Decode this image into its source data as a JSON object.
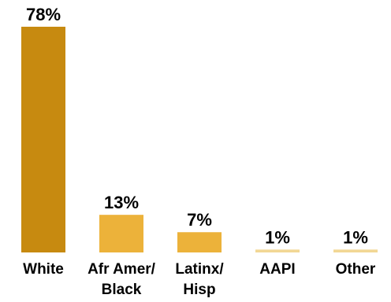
{
  "chart_data": {
    "type": "bar",
    "categories": [
      [
        "White"
      ],
      [
        "Afr Amer/",
        "Black"
      ],
      [
        "Latinx/",
        "Hisp"
      ],
      [
        "AAPI"
      ],
      [
        "Other"
      ]
    ],
    "values": [
      78,
      13,
      7,
      1,
      1
    ],
    "value_labels": [
      "78%",
      "13%",
      "7%",
      "1%",
      "1%"
    ],
    "bar_colors": [
      "#C78A10",
      "#ECB23A",
      "#ECB23A",
      "#F2D795",
      "#F2D795"
    ],
    "unit": "%",
    "title": "",
    "xlabel": "",
    "ylabel": "",
    "ylim": [
      0,
      78
    ],
    "grid": false,
    "legend": "none"
  }
}
